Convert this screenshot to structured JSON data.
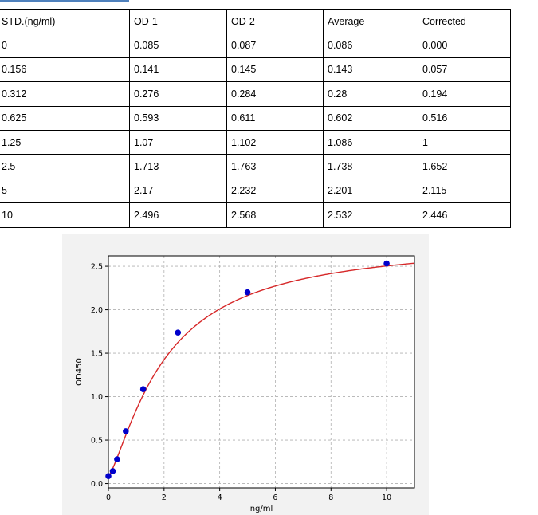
{
  "table": {
    "headers": [
      "STD.(ng/ml)",
      "OD-1",
      "OD-2",
      "Average",
      "Corrected"
    ],
    "rows": [
      [
        "0",
        "0.085",
        "0.087",
        "0.086",
        "0.000"
      ],
      [
        "0.156",
        "0.141",
        "0.145",
        "0.143",
        "0.057"
      ],
      [
        "0.312",
        "0.276",
        "0.284",
        "0.28",
        "0.194"
      ],
      [
        "0.625",
        "0.593",
        "0.611",
        "0.602",
        "0.516"
      ],
      [
        "1.25",
        "1.07",
        "1.102",
        "1.086",
        "1"
      ],
      [
        "2.5",
        "1.713",
        "1.763",
        "1.738",
        "1.652"
      ],
      [
        "5",
        "2.17",
        "2.232",
        "2.201",
        "2.115"
      ],
      [
        "10",
        "2.496",
        "2.568",
        "2.532",
        "2.446"
      ]
    ]
  },
  "chart_data": {
    "type": "scatter",
    "xlabel": "ng/ml",
    "ylabel": "OD450",
    "xlim": [
      0,
      11
    ],
    "ylim": [
      -0.05,
      2.62
    ],
    "xticks": [
      "0",
      "2",
      "4",
      "6",
      "8",
      "10"
    ],
    "yticks": [
      "0.0",
      "0.5",
      "1.0",
      "1.5",
      "2.0",
      "2.5"
    ],
    "grid": true,
    "series": [
      {
        "kind": "points",
        "color": "#0000cc",
        "x": [
          0,
          0.156,
          0.312,
          0.625,
          1.25,
          2.5,
          5,
          10
        ],
        "y": [
          0.086,
          0.143,
          0.28,
          0.602,
          1.086,
          1.738,
          2.201,
          2.532
        ]
      },
      {
        "kind": "fit-curve",
        "color": "#d62728",
        "model": "4PL",
        "params": {
          "a": 0.086,
          "d": 2.8,
          "c": 2.04,
          "b": 1.32
        }
      }
    ]
  }
}
